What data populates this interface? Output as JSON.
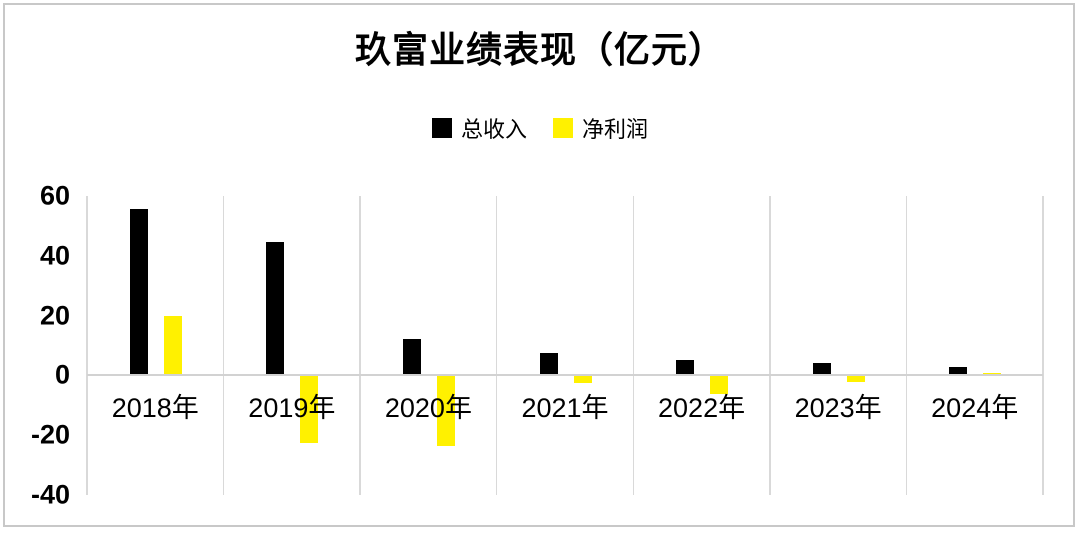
{
  "page": {
    "background_color": "#ffffff",
    "frame_border_color": "#c8c8c8"
  },
  "chart_data": {
    "type": "bar",
    "title": "玖富业绩表现（亿元）",
    "categories": [
      "2018年",
      "2019年",
      "2020年",
      "2021年",
      "2022年",
      "2023年",
      "2024年"
    ],
    "series": [
      {
        "key": "total-revenue",
        "name": "总收入",
        "color": "#000000",
        "values": [
          55.5,
          44.5,
          12.3,
          7.5,
          5.3,
          4.0,
          2.9
        ]
      },
      {
        "key": "net-profit",
        "name": "净利润",
        "color": "#fff100",
        "values": [
          19.8,
          -22.2,
          -23.3,
          -2.3,
          -5.8,
          -2.0,
          0.9
        ]
      }
    ],
    "xlabel": "",
    "ylabel": "",
    "ylim": [
      -40,
      60
    ],
    "yticks": [
      60,
      40,
      20,
      0,
      -20,
      -40
    ],
    "legend_position": "top",
    "grid": {
      "vertical": true,
      "horizontal": false,
      "color": "#d9d9d9"
    },
    "zero_line_color": "#d2d2d2"
  }
}
